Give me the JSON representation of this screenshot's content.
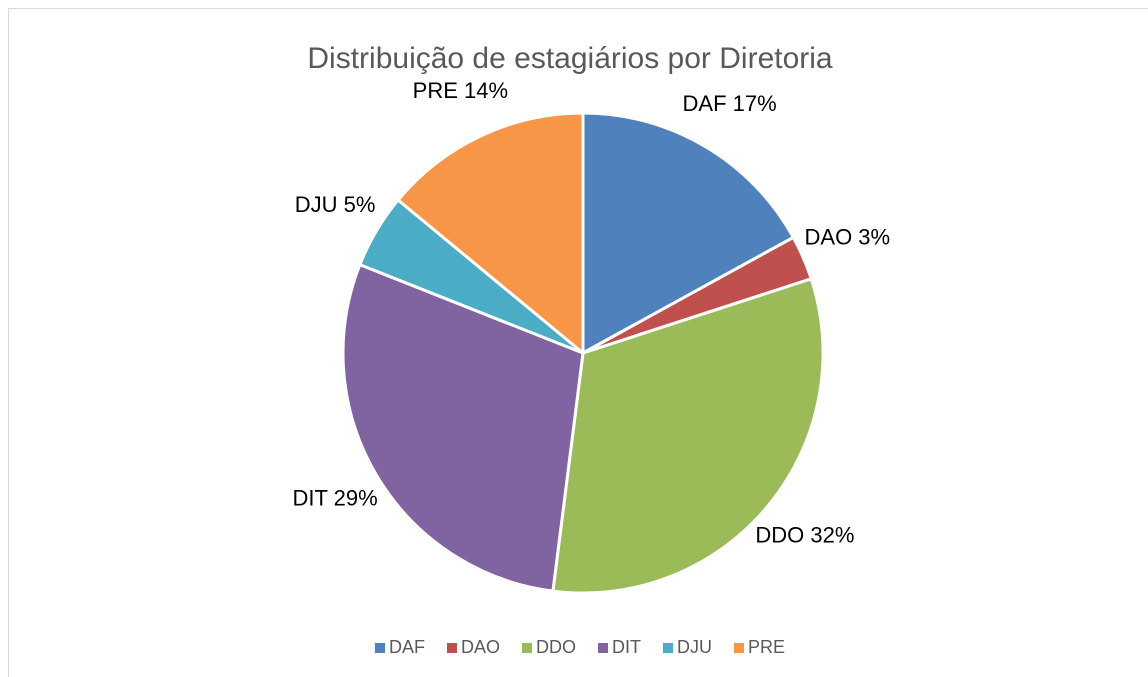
{
  "chart_data": {
    "type": "pie",
    "title": "Distribuição de estagiários por Diretoria",
    "categories": [
      "DAF",
      "DAO",
      "DDO",
      "DIT",
      "DJU",
      "PRE"
    ],
    "values": [
      17,
      3,
      32,
      29,
      5,
      14
    ],
    "value_labels": [
      "DAF 17%",
      "DAO 3%",
      "DDO 32%",
      "DIT 29%",
      "DJU 5%",
      "PRE 14%"
    ],
    "colors": [
      "#4f81bd",
      "#c0504d",
      "#9bbb59",
      "#8064a2",
      "#4bacc6",
      "#f79646"
    ],
    "legend": "bottom"
  }
}
